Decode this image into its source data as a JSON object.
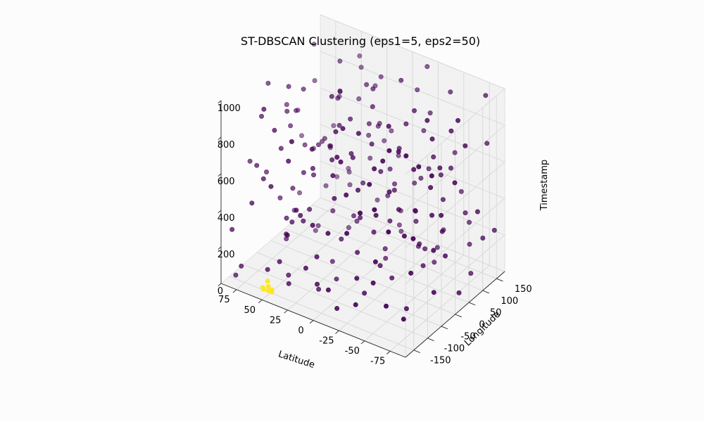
{
  "chart_data": {
    "type": "scatter",
    "title": "ST-DBSCAN Clustering (eps1=5, eps2=50)",
    "xlabel": "Latitude",
    "ylabel": "Longitude",
    "zlabel": "Timestamp",
    "xlim": [
      -90,
      90
    ],
    "ylim": [
      -180,
      180
    ],
    "zlim": [
      0,
      1000
    ],
    "xticks": [
      -75,
      -50,
      -25,
      0,
      25,
      50,
      75
    ],
    "yticks": [
      -150,
      -100,
      -50,
      0,
      50,
      100,
      150
    ],
    "zticks": [
      0,
      200,
      400,
      600,
      800,
      1000
    ],
    "grid": true,
    "colors": {
      "noise": "#440154",
      "cluster": "#fde725",
      "pane": "#f2f2f2",
      "grid": "#d7d7d7"
    },
    "series": [
      {
        "points": [
          [
            -85,
            100,
            420
          ],
          [
            -80,
            -40,
            150
          ],
          [
            -78,
            160,
            700
          ],
          [
            -75,
            20,
            260
          ],
          [
            -72,
            -120,
            90
          ],
          [
            -70,
            60,
            880
          ],
          [
            -68,
            -160,
            610
          ],
          [
            -65,
            130,
            330
          ],
          [
            -62,
            -80,
            470
          ],
          [
            -60,
            10,
            980
          ],
          [
            -58,
            170,
            210
          ],
          [
            -55,
            -20,
            740
          ],
          [
            -52,
            90,
            560
          ],
          [
            -50,
            -140,
            380
          ],
          [
            -48,
            40,
            120
          ],
          [
            -45,
            150,
            920
          ],
          [
            -42,
            -60,
            640
          ],
          [
            -40,
            110,
            30
          ],
          [
            -38,
            -100,
            810
          ],
          [
            -35,
            0,
            450
          ],
          [
            -33,
            70,
            290
          ],
          [
            -30,
            -170,
            530
          ],
          [
            -28,
            140,
            780
          ],
          [
            -25,
            -30,
            160
          ],
          [
            -22,
            50,
            690
          ],
          [
            -20,
            -90,
            950
          ],
          [
            -18,
            120,
            400
          ],
          [
            -15,
            -150,
            60
          ],
          [
            -12,
            20,
            580
          ],
          [
            -10,
            160,
            840
          ],
          [
            -8,
            -50,
            220
          ],
          [
            -5,
            80,
            500
          ],
          [
            -3,
            -120,
            720
          ],
          [
            0,
            -10,
            340
          ],
          [
            2,
            140,
            100
          ],
          [
            5,
            -80,
            890
          ],
          [
            8,
            30,
            460
          ],
          [
            10,
            -170,
            250
          ],
          [
            12,
            100,
            670
          ],
          [
            15,
            -40,
            10
          ],
          [
            18,
            170,
            540
          ],
          [
            20,
            -110,
            800
          ],
          [
            22,
            60,
            180
          ],
          [
            25,
            -20,
            960
          ],
          [
            28,
            130,
            420
          ],
          [
            30,
            -70,
            620
          ],
          [
            32,
            10,
            280
          ],
          [
            35,
            -140,
            740
          ],
          [
            38,
            90,
            70
          ],
          [
            40,
            -30,
            510
          ],
          [
            42,
            150,
            860
          ],
          [
            45,
            -90,
            320
          ],
          [
            48,
            40,
            600
          ],
          [
            50,
            -160,
            140
          ],
          [
            52,
            110,
            760
          ],
          [
            55,
            -50,
            430
          ],
          [
            58,
            0,
            900
          ],
          [
            60,
            170,
            240
          ],
          [
            62,
            -130,
            570
          ],
          [
            65,
            70,
            20
          ],
          [
            68,
            -10,
            690
          ],
          [
            70,
            140,
            380
          ],
          [
            72,
            -100,
            850
          ],
          [
            75,
            30,
            160
          ],
          [
            78,
            -60,
            480
          ],
          [
            80,
            120,
            940
          ],
          [
            82,
            -170,
            300
          ],
          [
            85,
            80,
            620
          ],
          [
            -86,
            -70,
            840
          ],
          [
            -83,
            40,
            50
          ],
          [
            -79,
            -10,
            530
          ],
          [
            -74,
            170,
            940
          ],
          [
            -71,
            -90,
            300
          ],
          [
            -67,
            30,
            710
          ],
          [
            -63,
            -150,
            180
          ],
          [
            -59,
            100,
            600
          ],
          [
            -56,
            -50,
            20
          ],
          [
            -53,
            160,
            380
          ],
          [
            -49,
            -110,
            890
          ],
          [
            -46,
            20,
            440
          ],
          [
            -43,
            -170,
            670
          ],
          [
            -39,
            80,
            140
          ],
          [
            -36,
            -40,
            960
          ],
          [
            -32,
            120,
            510
          ],
          [
            -29,
            -130,
            230
          ],
          [
            -26,
            60,
            820
          ],
          [
            -23,
            -80,
            70
          ],
          [
            -19,
            150,
            650
          ],
          [
            -16,
            -20,
            310
          ],
          [
            -13,
            90,
            990
          ],
          [
            -9,
            -160,
            470
          ],
          [
            -6,
            10,
            730
          ],
          [
            -2,
            130,
            200
          ],
          [
            1,
            -100,
            560
          ],
          [
            4,
            50,
            860
          ],
          [
            7,
            -140,
            130
          ],
          [
            11,
            170,
            420
          ],
          [
            14,
            -60,
            690
          ],
          [
            17,
            30,
            260
          ],
          [
            21,
            -180,
            930
          ],
          [
            24,
            110,
            580
          ],
          [
            27,
            -10,
            40
          ],
          [
            31,
            160,
            770
          ],
          [
            34,
            -90,
            350
          ],
          [
            37,
            20,
            610
          ],
          [
            41,
            -150,
            190
          ],
          [
            44,
            80,
            980
          ],
          [
            47,
            -40,
            520
          ],
          [
            51,
            140,
            280
          ],
          [
            54,
            -120,
            840
          ],
          [
            57,
            50,
            90
          ],
          [
            61,
            -70,
            660
          ],
          [
            64,
            120,
            410
          ],
          [
            67,
            -20,
            920
          ],
          [
            71,
            170,
            170
          ],
          [
            74,
            -110,
            590
          ],
          [
            77,
            10,
            760
          ],
          [
            81,
            -160,
            40
          ],
          [
            84,
            90,
            470
          ],
          [
            -88,
            150,
            260
          ],
          [
            -84,
            -130,
            570
          ],
          [
            -81,
            70,
            810
          ],
          [
            -77,
            -30,
            360
          ],
          [
            -73,
            120,
            30
          ],
          [
            -69,
            -100,
            950
          ],
          [
            -66,
            0,
            640
          ],
          [
            -61,
            160,
            110
          ],
          [
            -57,
            -170,
            720
          ],
          [
            -54,
            90,
            430
          ],
          [
            -51,
            -60,
            880
          ],
          [
            -47,
            30,
            250
          ],
          [
            -44,
            -140,
            790
          ],
          [
            -41,
            140,
            170
          ],
          [
            -37,
            -90,
            540
          ],
          [
            -34,
            60,
            910
          ],
          [
            -31,
            -10,
            80
          ],
          [
            -27,
            110,
            460
          ],
          [
            -24,
            -150,
            700
          ],
          [
            -21,
            20,
            330
          ],
          [
            -17,
            170,
            970
          ],
          [
            -14,
            -70,
            600
          ],
          [
            -11,
            40,
            130
          ],
          [
            -7,
            -120,
            830
          ],
          [
            -4,
            100,
            390
          ],
          [
            -1,
            -40,
            710
          ],
          [
            3,
            150,
            50
          ],
          [
            6,
            -160,
            480
          ],
          [
            9,
            70,
            920
          ],
          [
            13,
            -30,
            220
          ],
          [
            16,
            120,
            650
          ],
          [
            19,
            -90,
            10
          ],
          [
            23,
            0,
            780
          ],
          [
            26,
            -130,
            450
          ],
          [
            29,
            160,
            150
          ],
          [
            33,
            40,
            890
          ],
          [
            36,
            -60,
            370
          ],
          [
            39,
            130,
            720
          ],
          [
            43,
            -110,
            60
          ],
          [
            46,
            10,
            610
          ],
          [
            49,
            170,
            880
          ],
          [
            53,
            -80,
            310
          ],
          [
            56,
            60,
            540
          ],
          [
            59,
            -140,
            970
          ],
          [
            63,
            100,
            230
          ],
          [
            66,
            -30,
            800
          ],
          [
            69,
            150,
            480
          ],
          [
            73,
            -170,
            120
          ],
          [
            76,
            40,
            690
          ],
          [
            79,
            -50,
            950
          ],
          [
            83,
            130,
            350
          ],
          [
            86,
            -90,
            560
          ],
          [
            -87,
            10,
            700
          ],
          [
            -82,
            130,
            230
          ],
          [
            -76,
            -80,
            880
          ],
          [
            -64,
            50,
            330
          ],
          [
            -58,
            -120,
            980
          ],
          [
            -44,
            170,
            560
          ],
          [
            -36,
            -160,
            140
          ],
          [
            -24,
            100,
            290
          ],
          [
            -16,
            -140,
            850
          ],
          [
            -6,
            60,
            40
          ],
          [
            6,
            -20,
            690
          ],
          [
            18,
            80,
            910
          ],
          [
            28,
            -170,
            390
          ],
          [
            38,
            50,
            830
          ],
          [
            48,
            -100,
            260
          ],
          [
            58,
            130,
            690
          ],
          [
            68,
            -150,
            450
          ],
          [
            78,
            60,
            210
          ],
          [
            -70,
            -10,
            510
          ],
          [
            -20,
            40,
            470
          ],
          [
            0,
            90,
            330
          ],
          [
            10,
            -130,
            260
          ],
          [
            20,
            140,
            870
          ],
          [
            44,
            -170,
            620
          ],
          [
            64,
            -40,
            120
          ],
          [
            74,
            100,
            780
          ],
          [
            -50,
            70,
            680
          ],
          [
            -30,
            90,
            120
          ],
          [
            -10,
            -110,
            980
          ],
          [
            10,
            60,
            740
          ],
          [
            30,
            -130,
            470
          ],
          [
            70,
            -40,
            330
          ],
          [
            -65,
            10,
            890
          ],
          [
            -35,
            140,
            60
          ],
          [
            25,
            170,
            470
          ],
          [
            45,
            120,
            250
          ],
          [
            -82,
            40,
            990
          ],
          [
            -12,
            -170,
            180
          ],
          [
            32,
            -150,
            90
          ],
          [
            62,
            20,
            560
          ],
          [
            -45,
            -130,
            240
          ],
          [
            15,
            10,
            820
          ]
        ]
      },
      {
        "points": [
          [
            48,
            -152,
            12
          ],
          [
            50,
            -158,
            22
          ],
          [
            52,
            -150,
            30
          ],
          [
            55,
            -156,
            16
          ],
          [
            46,
            -160,
            38
          ],
          [
            54,
            -145,
            48
          ],
          [
            58,
            -148,
            8
          ]
        ]
      }
    ]
  }
}
